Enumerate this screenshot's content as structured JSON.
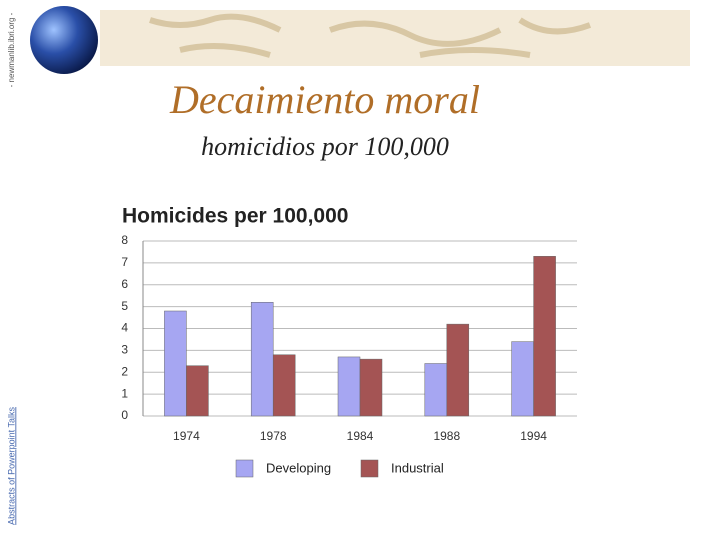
{
  "slide": {
    "title": "Decaimiento moral",
    "subtitle": "homicidios por 100,000",
    "side_note": "Abstracts of Powerpoint Talks",
    "top_note": "- newmanlib.ibri.org -"
  },
  "chart_data": {
    "type": "bar",
    "title": "Homicides per 100,000",
    "categories": [
      "1974",
      "1978",
      "1984",
      "1988",
      "1994"
    ],
    "series": [
      {
        "name": "Developing",
        "color": "#a6a6f2",
        "values": [
          4.8,
          5.2,
          2.7,
          2.4,
          3.4
        ]
      },
      {
        "name": "Industrial",
        "color": "#a45454",
        "values": [
          2.3,
          2.8,
          2.6,
          4.2,
          7.3
        ]
      }
    ],
    "ylim": [
      0,
      8
    ],
    "yticks": [
      0,
      1,
      2,
      3,
      4,
      5,
      6,
      7,
      8
    ],
    "grid": true
  }
}
